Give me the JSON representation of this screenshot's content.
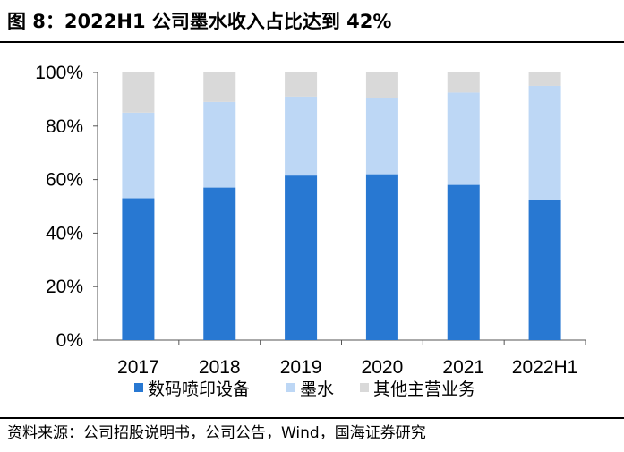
{
  "header": {
    "title": "图 8：2022H1 公司墨水收入占比达到 42%"
  },
  "footer": {
    "source": "资料来源：公司招股说明书，公司公告，Wind，国海证券研究"
  },
  "chart_data": {
    "type": "bar",
    "stacked": true,
    "categories": [
      "2017",
      "2018",
      "2019",
      "2020",
      "2021",
      "2022H1"
    ],
    "series": [
      {
        "name": "数码喷印设备",
        "color": "#2878D2",
        "values": [
          53,
          57,
          61.5,
          62,
          58,
          52.5
        ]
      },
      {
        "name": "墨水",
        "color": "#BDD7F5",
        "values": [
          32,
          32,
          29.5,
          28.5,
          34.5,
          42.5
        ]
      },
      {
        "name": "其他主营业务",
        "color": "#D9D9D9",
        "values": [
          15,
          11,
          9,
          9.5,
          7.5,
          5
        ]
      }
    ],
    "y_ticks": [
      "0%",
      "20%",
      "40%",
      "60%",
      "80%",
      "100%"
    ],
    "ylim": [
      0,
      100
    ],
    "grid": false,
    "legend_position": "bottom"
  }
}
